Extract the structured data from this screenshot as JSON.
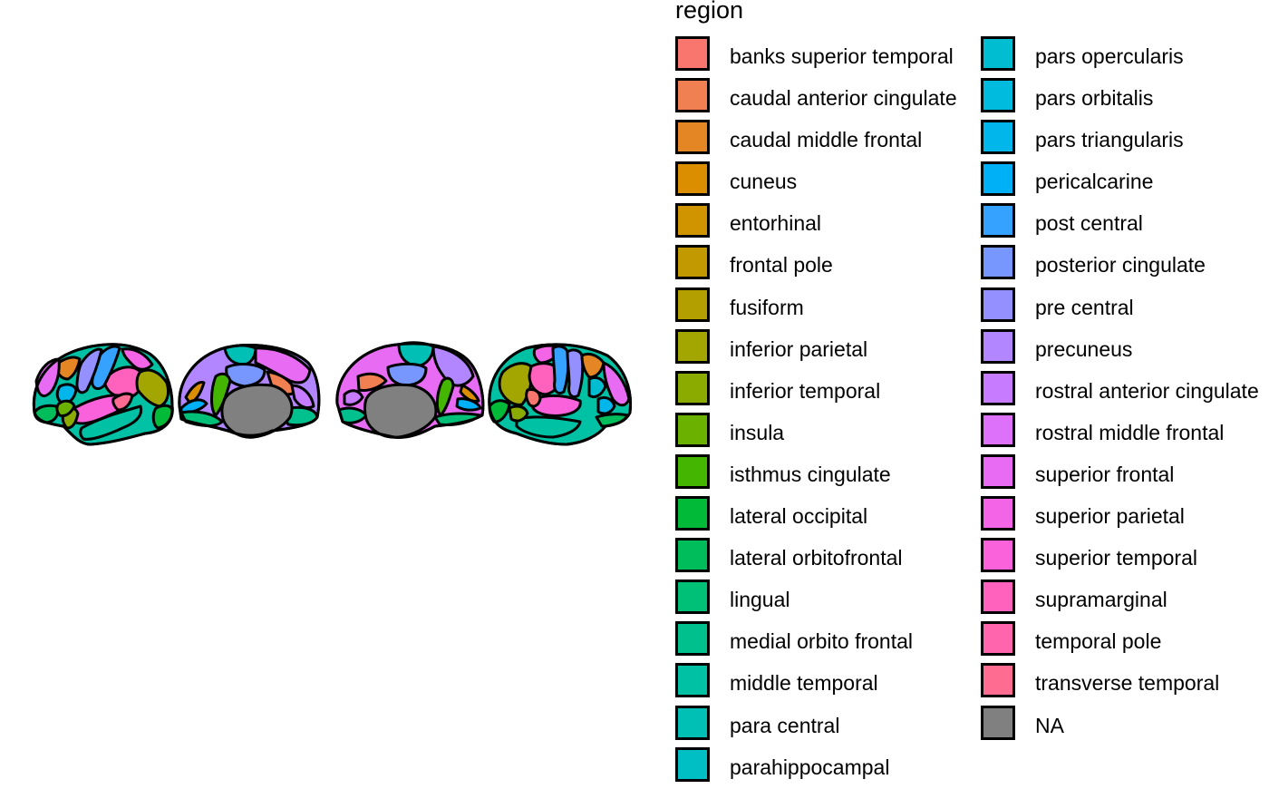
{
  "legend": {
    "title": "region",
    "columns": [
      [
        {
          "label": "banks superior temporal",
          "color": "#F8766D"
        },
        {
          "label": "caudal anterior cingulate",
          "color": "#F07F52"
        },
        {
          "label": "caudal middle frontal",
          "color": "#E58625"
        },
        {
          "label": "cuneus",
          "color": "#DB8E00"
        },
        {
          "label": "entorhinal",
          "color": "#CF9400"
        },
        {
          "label": "frontal pole",
          "color": "#C29A00"
        },
        {
          "label": "fusiform",
          "color": "#B3A000"
        },
        {
          "label": "inferior parietal",
          "color": "#A3A500"
        },
        {
          "label": "inferior temporal",
          "color": "#8CAB00"
        },
        {
          "label": "insula",
          "color": "#6BB100"
        },
        {
          "label": "isthmus cingulate",
          "color": "#44B500"
        },
        {
          "label": "lateral occipital",
          "color": "#00BA38"
        },
        {
          "label": "lateral orbitofrontal",
          "color": "#00BD5C"
        },
        {
          "label": "lingual",
          "color": "#00C078"
        },
        {
          "label": "medial orbito frontal",
          "color": "#00C08E"
        },
        {
          "label": "middle temporal",
          "color": "#00C1A3"
        },
        {
          "label": "para central",
          "color": "#00C0B6"
        },
        {
          "label": "parahippocampal",
          "color": "#00BFC4"
        }
      ],
      [
        {
          "label": "pars opercularis",
          "color": "#00BDD2"
        },
        {
          "label": "pars orbitalis",
          "color": "#00BBDE"
        },
        {
          "label": "pars triangularis",
          "color": "#00B6EB"
        },
        {
          "label": "pericalcarine",
          "color": "#00B0F6"
        },
        {
          "label": "post central",
          "color": "#35A2FF"
        },
        {
          "label": "posterior cingulate",
          "color": "#7797FF"
        },
        {
          "label": "pre central",
          "color": "#9590FF"
        },
        {
          "label": "precuneus",
          "color": "#B186FE"
        },
        {
          "label": "rostral anterior cingulate",
          "color": "#C77CFF"
        },
        {
          "label": "rostral middle frontal",
          "color": "#DE71F9"
        },
        {
          "label": "superior frontal",
          "color": "#E76BF3"
        },
        {
          "label": "superior parietal",
          "color": "#F365E6"
        },
        {
          "label": "superior temporal",
          "color": "#FA62DB"
        },
        {
          "label": "supramarginal",
          "color": "#FF62BC"
        },
        {
          "label": "temporal pole",
          "color": "#FF65AC"
        },
        {
          "label": "transverse temporal",
          "color": "#FF6C91"
        },
        {
          "label": "NA",
          "color": "#808080"
        }
      ]
    ]
  }
}
